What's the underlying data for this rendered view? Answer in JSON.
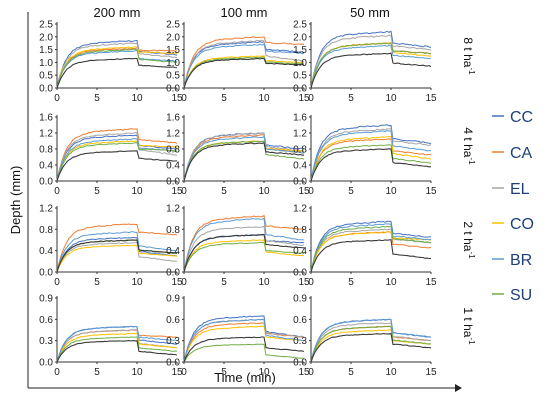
{
  "figure": {
    "column_titles": [
      "200 mm",
      "100 mm",
      "50 mm"
    ],
    "row_labels": [
      {
        "main": "8 t ha",
        "sup": "-1"
      },
      {
        "main": "4 t ha",
        "sup": "-1"
      },
      {
        "main": "2 t ha",
        "sup": "-1"
      },
      {
        "main": "1 t ha",
        "sup": "-1"
      }
    ],
    "ylabel": "Depth (mm)",
    "xlabel": "Time (min)"
  },
  "legend": [
    {
      "name": "CC",
      "color": "#4472c4"
    },
    {
      "name": "CA",
      "color": "#ed7d31"
    },
    {
      "name": "EL",
      "color": "#a5a5a5"
    },
    {
      "name": "CO",
      "color": "#ffc000"
    },
    {
      "name": "BR",
      "color": "#5b9bd5"
    },
    {
      "name": "SU",
      "color": "#70ad47"
    }
  ],
  "chart_data": {
    "type": "line",
    "x_range": [
      0,
      15
    ],
    "x_ticks": [
      0,
      5,
      10,
      15
    ],
    "rows": [
      {
        "ylim": [
          0,
          2.5
        ],
        "y_ticks": [
          "0.0",
          "0.5",
          "1.0",
          "1.5",
          "2.0",
          "2.5"
        ],
        "y_values": [
          0,
          0.5,
          1.0,
          1.5,
          2.0,
          2.5
        ]
      },
      {
        "ylim": [
          0,
          1.6
        ],
        "y_ticks": [
          "0.0",
          "0.4",
          "0.8",
          "1.2",
          "1.6"
        ],
        "y_values": [
          0,
          0.4,
          0.8,
          1.2,
          1.6
        ]
      },
      {
        "ylim": [
          0,
          1.2
        ],
        "y_ticks": [
          "0.0",
          "0.4",
          "0.8",
          "1.2"
        ],
        "y_values": [
          0,
          0.4,
          0.8,
          1.2
        ]
      },
      {
        "ylim": [
          0,
          0.9
        ],
        "y_ticks": [
          "0.0",
          "0.3",
          "0.6",
          "0.9"
        ],
        "y_values": [
          0,
          0.3,
          0.6,
          0.9
        ]
      }
    ],
    "series_order": [
      "CC",
      "CA",
      "EL",
      "CO",
      "BR",
      "SU",
      "unlabeled-dark"
    ],
    "series_colors": [
      "#4472c4",
      "#ed7d31",
      "#a5a5a5",
      "#ffc000",
      "#5b9bd5",
      "#70ad47",
      "#3a3a3a"
    ],
    "panels": [
      {
        "row": 0,
        "col": 0,
        "plateau": [
          1.85,
          1.55,
          1.75,
          1.6,
          1.45,
          1.5,
          1.15
        ],
        "end": [
          1.3,
          1.45,
          1.2,
          1.35,
          1.05,
          1.0,
          0.8
        ]
      },
      {
        "row": 0,
        "col": 1,
        "plateau": [
          1.8,
          2.0,
          1.85,
          1.25,
          1.7,
          1.2,
          1.15
        ],
        "end": [
          1.4,
          1.7,
          1.05,
          1.0,
          1.35,
          0.95,
          0.9
        ]
      },
      {
        "row": 0,
        "col": 2,
        "plateau": [
          2.2,
          1.75,
          2.05,
          1.75,
          1.65,
          1.75,
          1.35
        ],
        "end": [
          1.6,
          1.35,
          1.5,
          1.25,
          1.15,
          1.35,
          0.85
        ]
      },
      {
        "row": 1,
        "col": 0,
        "plateau": [
          1.15,
          1.3,
          1.2,
          1.0,
          1.05,
          0.95,
          0.75
        ],
        "end": [
          0.8,
          0.95,
          0.65,
          0.85,
          0.75,
          0.75,
          0.5
        ]
      },
      {
        "row": 1,
        "col": 1,
        "plateau": [
          1.2,
          1.15,
          1.2,
          1.0,
          1.1,
          1.0,
          0.95
        ],
        "end": [
          0.8,
          0.7,
          0.75,
          0.75,
          0.7,
          0.55,
          0.65
        ]
      },
      {
        "row": 1,
        "col": 2,
        "plateau": [
          1.4,
          1.05,
          1.3,
          1.1,
          1.25,
          0.9,
          0.8
        ],
        "end": [
          0.95,
          0.65,
          0.9,
          0.55,
          0.75,
          0.45,
          0.35
        ]
      },
      {
        "row": 2,
        "col": 0,
        "plateau": [
          0.65,
          0.9,
          0.55,
          0.5,
          0.75,
          0.6,
          0.6
        ],
        "end": [
          0.3,
          0.7,
          0.2,
          0.3,
          0.4,
          0.35,
          0.35
        ]
      },
      {
        "row": 2,
        "col": 1,
        "plateau": [
          0.7,
          1.05,
          0.85,
          0.6,
          1.0,
          0.55,
          0.7
        ],
        "end": [
          0.55,
          0.8,
          0.5,
          0.3,
          0.6,
          0.35,
          0.45
        ]
      },
      {
        "row": 2,
        "col": 2,
        "plateau": [
          0.95,
          0.75,
          0.8,
          0.75,
          0.9,
          0.85,
          0.6
        ],
        "end": [
          0.65,
          0.45,
          0.55,
          0.6,
          0.6,
          0.55,
          0.25
        ]
      },
      {
        "row": 3,
        "col": 0,
        "plateau": [
          0.5,
          0.45,
          0.45,
          0.4,
          0.5,
          0.35,
          0.3
        ],
        "end": [
          0.25,
          0.35,
          0.2,
          0.2,
          0.3,
          0.15,
          0.1
        ]
      },
      {
        "row": 3,
        "col": 1,
        "plateau": [
          0.65,
          0.55,
          0.6,
          0.5,
          0.6,
          0.25,
          0.35
        ],
        "end": [
          0.35,
          0.35,
          0.35,
          0.3,
          0.3,
          0.05,
          0.15
        ]
      },
      {
        "row": 3,
        "col": 2,
        "plateau": [
          0.6,
          0.5,
          0.55,
          0.45,
          0.6,
          0.5,
          0.4
        ],
        "end": [
          0.35,
          0.3,
          0.3,
          0.25,
          0.35,
          0.25,
          0.2
        ]
      }
    ]
  }
}
